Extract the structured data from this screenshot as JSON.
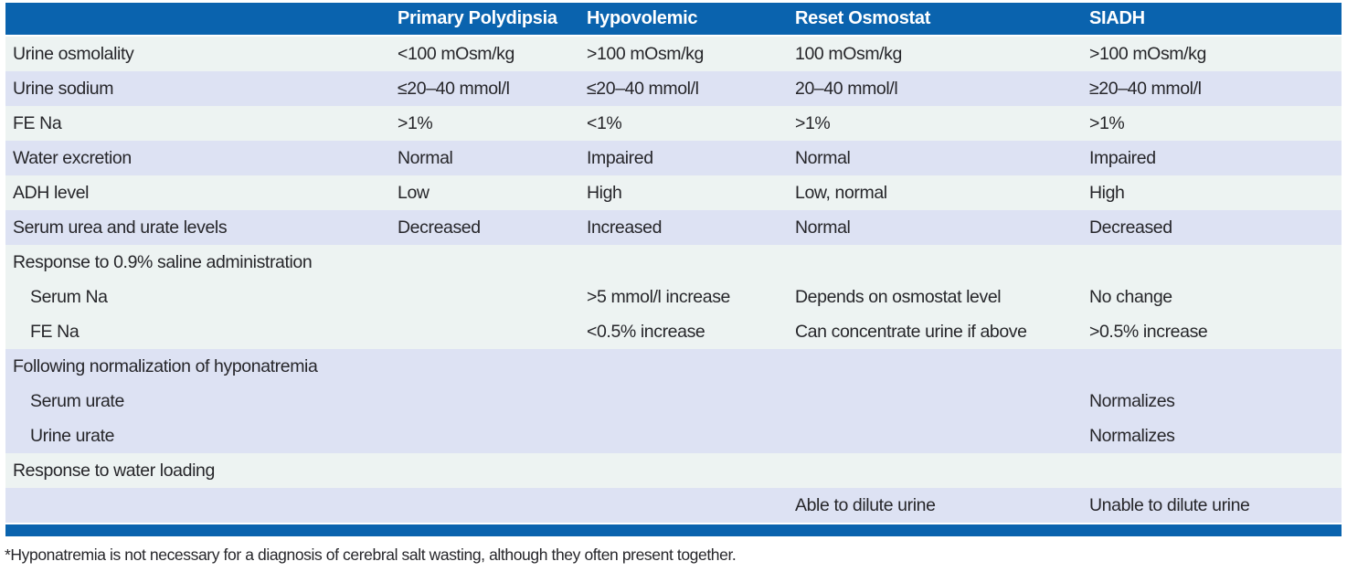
{
  "colors": {
    "header_bg": "#0a63ae",
    "bottom_rule": "#0a63ae",
    "stripe_light": "#edf3f2",
    "stripe_lavender": "#dde2f3",
    "header_text": "#ffffff",
    "body_text": "#26262a"
  },
  "table": {
    "columns": [
      "",
      "Primary Polydipsia",
      "Hypovolemic",
      "Reset Osmostat",
      "SIADH"
    ],
    "rows": [
      {
        "label": "Urine osmolality",
        "indent": false,
        "stripe": "light",
        "values": [
          "<100 mOsm/kg",
          ">100 mOsm/kg",
          "100 mOsm/kg",
          ">100 mOsm/kg"
        ]
      },
      {
        "label": "Urine sodium",
        "indent": false,
        "stripe": "lavender",
        "values": [
          "≤20–40 mmol/l",
          "≤20–40 mmol/l",
          "20–40 mmol/l",
          "≥20–40 mmol/l"
        ]
      },
      {
        "label": "FE Na",
        "indent": false,
        "stripe": "light",
        "values": [
          ">1%",
          "<1%",
          ">1%",
          ">1%"
        ]
      },
      {
        "label": "Water excretion",
        "indent": false,
        "stripe": "lavender",
        "values": [
          "Normal",
          "Impaired",
          "Normal",
          "Impaired"
        ]
      },
      {
        "label": "ADH level",
        "indent": false,
        "stripe": "light",
        "values": [
          "Low",
          "High",
          "Low, normal",
          "High"
        ]
      },
      {
        "label": "Serum urea and urate levels",
        "indent": false,
        "stripe": "lavender",
        "values": [
          "Decreased",
          "Increased",
          "Normal",
          "Decreased"
        ]
      },
      {
        "label": "Response to 0.9% saline administration",
        "indent": false,
        "stripe": "light",
        "values": [
          "",
          "",
          "",
          ""
        ]
      },
      {
        "label": "Serum Na",
        "indent": true,
        "stripe": "light",
        "values": [
          "",
          ">5 mmol/l increase",
          "Depends on osmostat level",
          "No change"
        ]
      },
      {
        "label": "FE Na",
        "indent": true,
        "stripe": "light",
        "values": [
          "",
          "<0.5% increase",
          "Can concentrate urine if above",
          ">0.5% increase"
        ]
      },
      {
        "label": "Following normalization of hyponatremia",
        "indent": false,
        "stripe": "lavender",
        "values": [
          "",
          "",
          "",
          ""
        ]
      },
      {
        "label": "Serum urate",
        "indent": true,
        "stripe": "lavender",
        "values": [
          "",
          "",
          "",
          "Normalizes"
        ]
      },
      {
        "label": "Urine urate",
        "indent": true,
        "stripe": "lavender",
        "values": [
          "",
          "",
          "",
          "Normalizes"
        ]
      },
      {
        "label": "Response to water loading",
        "indent": false,
        "stripe": "light",
        "values": [
          "",
          "",
          "",
          ""
        ]
      },
      {
        "label": "",
        "indent": false,
        "stripe": "lavender",
        "values": [
          "",
          "",
          "Able to dilute urine",
          "Unable to dilute urine"
        ]
      }
    ]
  },
  "footnote": "*Hyponatremia is not necessary for a diagnosis of cerebral salt wasting, although they often present together."
}
